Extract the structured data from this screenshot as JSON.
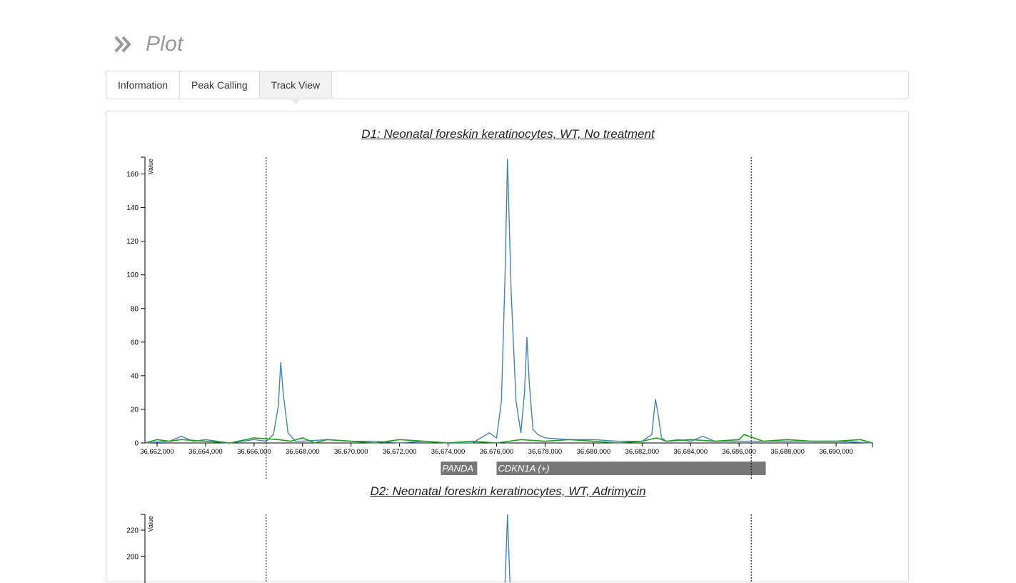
{
  "header": {
    "title": "Plot",
    "icon": "double-chevron-right-icon"
  },
  "tabs": [
    {
      "label": "Information",
      "active": false
    },
    {
      "label": "Peak Calling",
      "active": false
    },
    {
      "label": "Track View",
      "active": true
    }
  ],
  "colors": {
    "signal": "#4682b4",
    "background_signal": "#1a9e1a",
    "gene_bar": "#777777",
    "title": "#999999"
  },
  "chart_data": [
    {
      "type": "line",
      "title": "D1: Neonatal foreskin keratinocytes, WT, No treatment",
      "ylabel": "Value",
      "xlim": [
        36661500,
        36691500
      ],
      "ylim": [
        0,
        170
      ],
      "x_ticks": [
        36662000,
        36664000,
        36666000,
        36668000,
        36670000,
        36672000,
        36674000,
        36676000,
        36678000,
        36680000,
        36682000,
        36684000,
        36686000,
        36688000,
        36690000
      ],
      "x_tick_labels": [
        "36,662,000",
        "36,664,000",
        "36,666,000",
        "36,668,000",
        "36,670,000",
        "36,672,000",
        "36,674,000",
        "36,676,000",
        "36,678,000",
        "36,680,000",
        "36,682,000",
        "36,684,000",
        "36,686,000",
        "36,688,000",
        "36,690,000"
      ],
      "y_ticks": [
        0,
        20,
        40,
        60,
        80,
        100,
        120,
        140,
        160
      ],
      "vlines": [
        36666500,
        36686500
      ],
      "series": [
        {
          "color": "#4682b4",
          "x": [
            36661500,
            36662500,
            36663000,
            36663500,
            36664000,
            36665000,
            36666000,
            36666500,
            36666800,
            36667000,
            36667100,
            36667200,
            36667400,
            36667700,
            36668000,
            36669000,
            36670000,
            36671000,
            36672000,
            36673000,
            36674000,
            36675000,
            36675700,
            36676000,
            36676200,
            36676350,
            36676450,
            36676600,
            36676800,
            36677000,
            36677150,
            36677250,
            36677350,
            36677500,
            36677700,
            36678000,
            36679000,
            36680000,
            36681000,
            36682000,
            36682400,
            36682550,
            36682650,
            36682800,
            36683000,
            36683500,
            36684000,
            36684500,
            36685000,
            36686000,
            36687000,
            36688000,
            36689000,
            36690000,
            36691500
          ],
          "y": [
            0,
            1,
            4,
            1,
            2,
            0,
            2,
            1,
            5,
            22,
            48,
            30,
            6,
            1,
            1,
            2,
            1,
            1,
            0,
            1,
            0,
            0,
            6,
            3,
            25,
            100,
            169,
            90,
            25,
            6,
            30,
            63,
            35,
            8,
            5,
            3,
            2,
            2,
            1,
            1,
            5,
            26,
            18,
            3,
            1,
            2,
            1,
            4,
            1,
            1,
            1,
            1,
            1,
            1,
            0
          ]
        },
        {
          "color": "#1a9e1a",
          "x": [
            36661500,
            36662000,
            36662500,
            36663000,
            36664000,
            36665000,
            36666000,
            36667000,
            36667500,
            36668000,
            36668500,
            36669000,
            36670000,
            36671000,
            36672000,
            36673000,
            36674000,
            36675000,
            36676000,
            36677000,
            36678000,
            36679000,
            36680000,
            36681000,
            36682000,
            36682600,
            36683000,
            36684000,
            36685000,
            36686000,
            36686200,
            36687000,
            36688000,
            36689000,
            36690000,
            36691000,
            36691500
          ],
          "y": [
            0,
            2,
            1,
            2,
            1,
            0,
            3,
            2,
            1,
            3,
            0,
            2,
            1,
            0,
            2,
            1,
            0,
            1,
            0,
            2,
            1,
            2,
            1,
            0,
            1,
            3,
            1,
            2,
            1,
            2,
            5,
            1,
            2,
            1,
            1,
            2,
            0
          ]
        }
      ],
      "annotations": [
        {
          "label": "PANDA",
          "start": 36673700,
          "end": 36675200
        },
        {
          "label": "CDKN1A (+)",
          "start": 36676000,
          "end": 36687100
        }
      ]
    },
    {
      "type": "line",
      "title": "D2: Neonatal foreskin keratinocytes, WT, Adrimycin",
      "ylabel": "Value",
      "xlim": [
        36661500,
        36691500
      ],
      "ylim": [
        0,
        232
      ],
      "y_ticks": [
        200,
        220
      ],
      "vlines": [
        36666500,
        36686500
      ],
      "series": [
        {
          "color": "#4682b4",
          "x": [
            36676350,
            36676450,
            36676550
          ],
          "y": [
            180,
            232,
            180
          ]
        }
      ]
    }
  ]
}
